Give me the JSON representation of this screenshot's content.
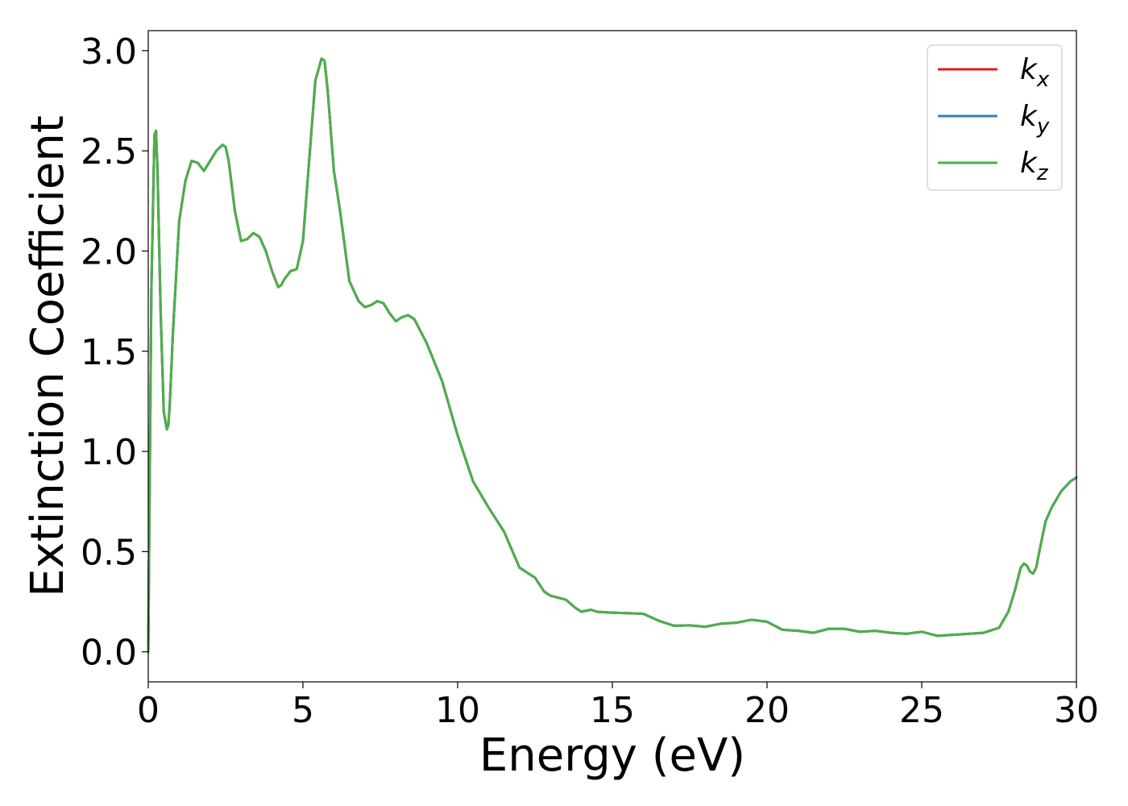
{
  "chart_data": {
    "type": "line",
    "xlabel": "Energy (eV)",
    "ylabel": "Extinction Coefficient",
    "xlim": [
      0,
      30
    ],
    "ylim": [
      -0.15,
      3.1
    ],
    "xticks": [
      0,
      5,
      10,
      15,
      20,
      25,
      30
    ],
    "xtick_labels": [
      "0",
      "5",
      "10",
      "15",
      "20",
      "25",
      "30"
    ],
    "yticks": [
      0.0,
      0.5,
      1.0,
      1.5,
      2.0,
      2.5,
      3.0
    ],
    "ytick_labels": [
      "0.0",
      "0.5",
      "1.0",
      "1.5",
      "2.0",
      "2.5",
      "3.0"
    ],
    "grid": false,
    "legend_position": "top-right",
    "x": [
      0,
      0.1,
      0.2,
      0.25,
      0.3,
      0.4,
      0.5,
      0.6,
      0.65,
      0.7,
      0.8,
      1.0,
      1.2,
      1.4,
      1.6,
      1.8,
      2.0,
      2.2,
      2.4,
      2.5,
      2.6,
      2.8,
      3.0,
      3.2,
      3.4,
      3.6,
      3.8,
      4.0,
      4.2,
      4.3,
      4.4,
      4.6,
      4.8,
      5.0,
      5.2,
      5.4,
      5.6,
      5.7,
      5.8,
      6.0,
      6.2,
      6.5,
      6.8,
      7.0,
      7.2,
      7.4,
      7.6,
      7.8,
      8.0,
      8.2,
      8.4,
      8.6,
      8.8,
      9.0,
      9.5,
      10.0,
      10.5,
      11.0,
      11.5,
      12.0,
      12.2,
      12.5,
      12.8,
      13.0,
      13.5,
      13.8,
      14.0,
      14.3,
      14.5,
      15.0,
      15.5,
      16.0,
      16.5,
      17.0,
      17.5,
      18.0,
      18.5,
      19.0,
      19.5,
      20.0,
      20.5,
      21.0,
      21.5,
      22.0,
      22.5,
      23.0,
      23.5,
      24.0,
      24.5,
      25.0,
      25.5,
      26.0,
      26.5,
      27.0,
      27.5,
      27.8,
      28.0,
      28.2,
      28.3,
      28.4,
      28.5,
      28.6,
      28.7,
      28.8,
      29.0,
      29.2,
      29.5,
      29.8,
      30.0
    ],
    "series": [
      {
        "name": "k_x",
        "color": "#e41a1c",
        "values": [
          0.0,
          1.8,
          2.58,
          2.6,
          2.4,
          1.7,
          1.2,
          1.11,
          1.13,
          1.25,
          1.6,
          2.15,
          2.35,
          2.45,
          2.44,
          2.4,
          2.45,
          2.5,
          2.53,
          2.52,
          2.45,
          2.2,
          2.05,
          2.06,
          2.09,
          2.07,
          2.0,
          1.9,
          1.82,
          1.83,
          1.86,
          1.9,
          1.91,
          2.05,
          2.45,
          2.85,
          2.96,
          2.95,
          2.8,
          2.4,
          2.2,
          1.85,
          1.75,
          1.72,
          1.73,
          1.75,
          1.74,
          1.69,
          1.65,
          1.67,
          1.68,
          1.66,
          1.6,
          1.54,
          1.35,
          1.08,
          0.85,
          0.72,
          0.6,
          0.42,
          0.4,
          0.37,
          0.3,
          0.28,
          0.26,
          0.22,
          0.2,
          0.21,
          0.2,
          0.195,
          0.193,
          0.19,
          0.155,
          0.13,
          0.132,
          0.125,
          0.14,
          0.145,
          0.16,
          0.15,
          0.11,
          0.105,
          0.095,
          0.115,
          0.115,
          0.1,
          0.105,
          0.095,
          0.09,
          0.1,
          0.08,
          0.085,
          0.09,
          0.095,
          0.12,
          0.2,
          0.3,
          0.42,
          0.44,
          0.43,
          0.4,
          0.39,
          0.42,
          0.5,
          0.65,
          0.72,
          0.8,
          0.85,
          0.87
        ]
      },
      {
        "name": "k_y",
        "color": "#377eb8",
        "values": [
          0.0,
          1.8,
          2.58,
          2.6,
          2.4,
          1.7,
          1.2,
          1.11,
          1.13,
          1.25,
          1.6,
          2.15,
          2.35,
          2.45,
          2.44,
          2.4,
          2.45,
          2.5,
          2.53,
          2.52,
          2.45,
          2.2,
          2.05,
          2.06,
          2.09,
          2.07,
          2.0,
          1.9,
          1.82,
          1.83,
          1.86,
          1.9,
          1.91,
          2.05,
          2.45,
          2.85,
          2.96,
          2.95,
          2.8,
          2.4,
          2.2,
          1.85,
          1.75,
          1.72,
          1.73,
          1.75,
          1.74,
          1.69,
          1.65,
          1.67,
          1.68,
          1.66,
          1.6,
          1.54,
          1.35,
          1.08,
          0.85,
          0.72,
          0.6,
          0.42,
          0.4,
          0.37,
          0.3,
          0.28,
          0.26,
          0.22,
          0.2,
          0.21,
          0.2,
          0.195,
          0.193,
          0.19,
          0.155,
          0.13,
          0.132,
          0.125,
          0.14,
          0.145,
          0.16,
          0.15,
          0.11,
          0.105,
          0.095,
          0.115,
          0.115,
          0.1,
          0.105,
          0.095,
          0.09,
          0.1,
          0.08,
          0.085,
          0.09,
          0.095,
          0.12,
          0.2,
          0.3,
          0.42,
          0.44,
          0.43,
          0.4,
          0.39,
          0.42,
          0.5,
          0.65,
          0.72,
          0.8,
          0.85,
          0.87
        ]
      },
      {
        "name": "k_z",
        "color": "#4daf4a",
        "values": [
          0.0,
          1.8,
          2.58,
          2.6,
          2.4,
          1.7,
          1.2,
          1.11,
          1.13,
          1.25,
          1.6,
          2.15,
          2.35,
          2.45,
          2.44,
          2.4,
          2.45,
          2.5,
          2.53,
          2.52,
          2.45,
          2.2,
          2.05,
          2.06,
          2.09,
          2.07,
          2.0,
          1.9,
          1.82,
          1.83,
          1.86,
          1.9,
          1.91,
          2.05,
          2.45,
          2.85,
          2.96,
          2.95,
          2.8,
          2.4,
          2.2,
          1.85,
          1.75,
          1.72,
          1.73,
          1.75,
          1.74,
          1.69,
          1.65,
          1.67,
          1.68,
          1.66,
          1.6,
          1.54,
          1.35,
          1.08,
          0.85,
          0.72,
          0.6,
          0.42,
          0.4,
          0.37,
          0.3,
          0.28,
          0.26,
          0.22,
          0.2,
          0.21,
          0.2,
          0.195,
          0.193,
          0.19,
          0.155,
          0.13,
          0.132,
          0.125,
          0.14,
          0.145,
          0.16,
          0.15,
          0.11,
          0.105,
          0.095,
          0.115,
          0.115,
          0.1,
          0.105,
          0.095,
          0.09,
          0.1,
          0.08,
          0.085,
          0.09,
          0.095,
          0.12,
          0.2,
          0.3,
          0.42,
          0.44,
          0.43,
          0.4,
          0.39,
          0.42,
          0.5,
          0.65,
          0.72,
          0.8,
          0.85,
          0.87
        ]
      }
    ],
    "legend": [
      {
        "base": "k",
        "sub": "x",
        "color": "#e41a1c"
      },
      {
        "base": "k",
        "sub": "y",
        "color": "#377eb8"
      },
      {
        "base": "k",
        "sub": "z",
        "color": "#4daf4a"
      }
    ]
  }
}
